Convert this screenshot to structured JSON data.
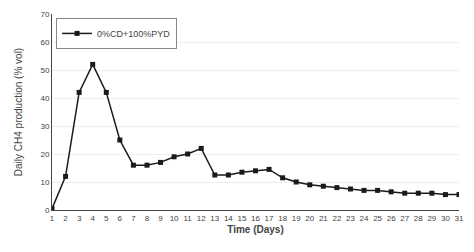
{
  "chart_data": {
    "type": "line",
    "x": [
      1,
      2,
      3,
      4,
      5,
      6,
      7,
      8,
      9,
      10,
      11,
      12,
      13,
      14,
      15,
      16,
      17,
      18,
      19,
      20,
      21,
      22,
      23,
      24,
      25,
      26,
      27,
      28,
      29,
      30,
      31
    ],
    "series": [
      {
        "name": "0%CD+100%PYD",
        "color": "#1a1a1a",
        "marker": "square",
        "values": [
          0.5,
          12,
          42,
          52,
          42,
          25,
          16,
          16,
          17,
          19,
          20,
          22,
          12.5,
          12.5,
          13.5,
          14,
          14.5,
          11.5,
          10,
          9,
          8.5,
          8,
          7.5,
          7,
          7,
          6.5,
          6,
          6,
          6,
          5.5,
          5.5
        ]
      }
    ],
    "xlabel": "Time (Days)",
    "ylabel": "Daily CH4 production (% vol)",
    "xlim": [
      1,
      31
    ],
    "ylim": [
      0,
      70
    ],
    "xticks": [
      1,
      2,
      3,
      4,
      5,
      6,
      7,
      8,
      9,
      10,
      11,
      12,
      13,
      14,
      15,
      16,
      17,
      18,
      19,
      20,
      21,
      22,
      23,
      24,
      25,
      26,
      27,
      28,
      29,
      30,
      31
    ],
    "yticks": [
      0,
      10,
      20,
      30,
      40,
      50,
      60,
      70
    ],
    "grid": true,
    "legend": "upper left"
  }
}
